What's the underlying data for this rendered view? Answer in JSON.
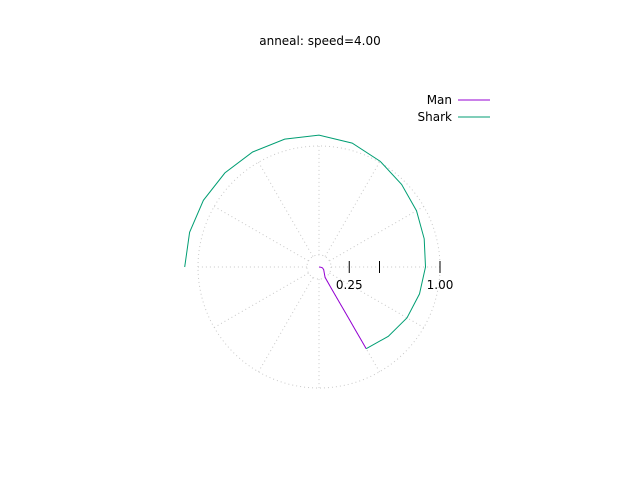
{
  "chart_data": {
    "type": "line",
    "subtype": "polar",
    "title": "anneal: speed=4.00",
    "r_ticks": [
      {
        "value": 0.25,
        "label": "0.25"
      },
      {
        "value": 0.5,
        "label": ""
      },
      {
        "value": 1.0,
        "label": "1.00"
      }
    ],
    "r_grid": [
      0.1,
      1.0
    ],
    "angular_grid_step_deg": 30,
    "legend_position": "top-right",
    "grid": true,
    "series": [
      {
        "name": "Man",
        "color": "#9400d3",
        "theta_deg": [
          0,
          -5,
          -15,
          -30,
          -45,
          -55,
          -59.5,
          -60,
          -60,
          -60,
          -60,
          -60,
          -60,
          -60
        ],
        "r": [
          0,
          0.015,
          0.03,
          0.045,
          0.06,
          0.08,
          0.1,
          0.2,
          0.3,
          0.4,
          0.5,
          0.6,
          0.7,
          0.78
        ]
      },
      {
        "name": "Shark",
        "color": "#009e73",
        "theta_deg": [
          180,
          165,
          150,
          135,
          120,
          105,
          90,
          75,
          60,
          45,
          30,
          15,
          0,
          -15,
          -30,
          -45,
          -60
        ],
        "r": [
          1.11,
          1.107,
          1.103,
          1.1,
          1.097,
          1.094,
          1.09,
          1.06,
          1.01,
          0.965,
          0.93,
          0.9,
          0.88,
          0.86,
          0.84,
          0.81,
          0.78
        ]
      }
    ]
  }
}
